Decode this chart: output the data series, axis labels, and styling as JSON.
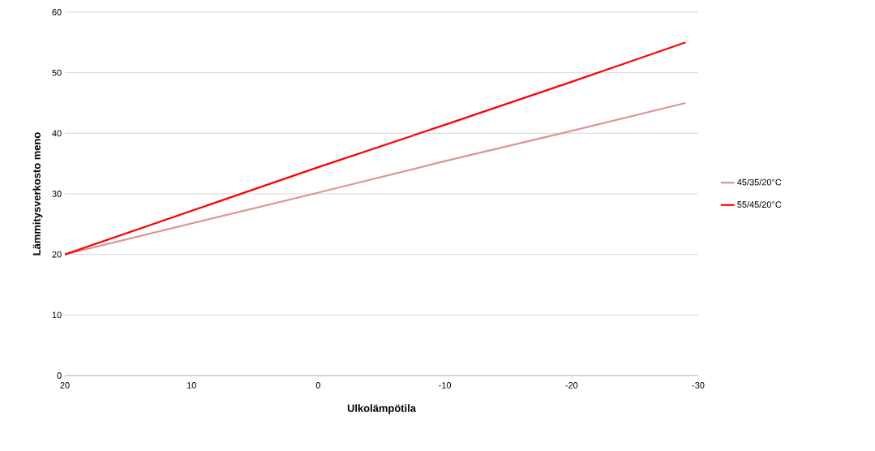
{
  "chart_data": {
    "type": "line",
    "xlabel": "Ulkolämpötila",
    "ylabel": "Lämmitysverkosto meno",
    "x": [
      20,
      0,
      -10,
      -20,
      -29
    ],
    "series": [
      {
        "name": "45/35/20°C",
        "color": "#d99694",
        "values": [
          20,
          30.2,
          35.4,
          40.4,
          45
        ]
      },
      {
        "name": "55/45/20°C",
        "color": "#ff0000",
        "values": [
          20,
          34.4,
          41.4,
          48.5,
          55
        ]
      }
    ],
    "xlim": [
      20,
      -30
    ],
    "xticks": [
      20,
      10,
      0,
      -10,
      -20,
      -30
    ],
    "ylim": [
      0,
      60
    ],
    "yticks": [
      0,
      10,
      20,
      30,
      40,
      50,
      60
    ],
    "grid": "y",
    "legend": "right",
    "marker": "none",
    "line_style": "solid"
  }
}
